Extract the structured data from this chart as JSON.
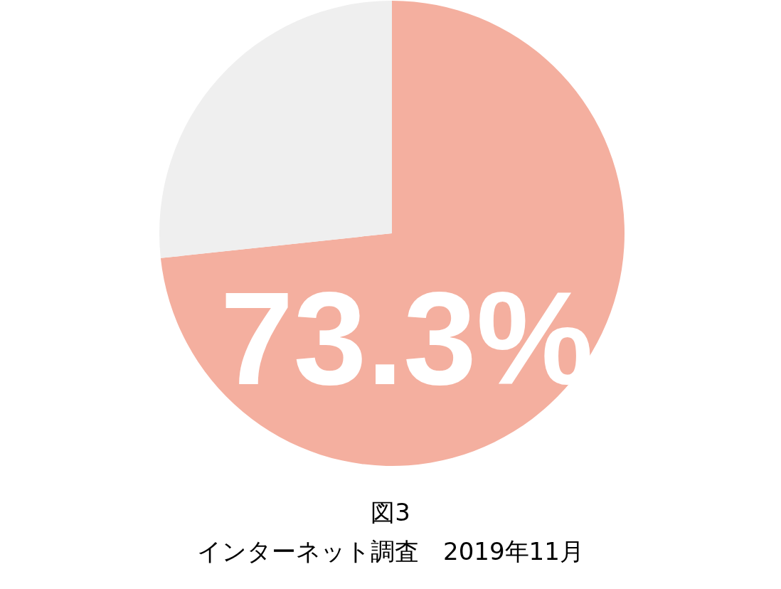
{
  "chart_data": {
    "type": "pie",
    "categories": [
      null,
      null
    ],
    "values": [
      73.3,
      26.7
    ],
    "colors": [
      "#f4af9f",
      "#efefef"
    ],
    "value_labels": [
      "73.3%",
      null
    ],
    "annotations": [
      "図3",
      "インターネット調査　2019年11月"
    ]
  }
}
